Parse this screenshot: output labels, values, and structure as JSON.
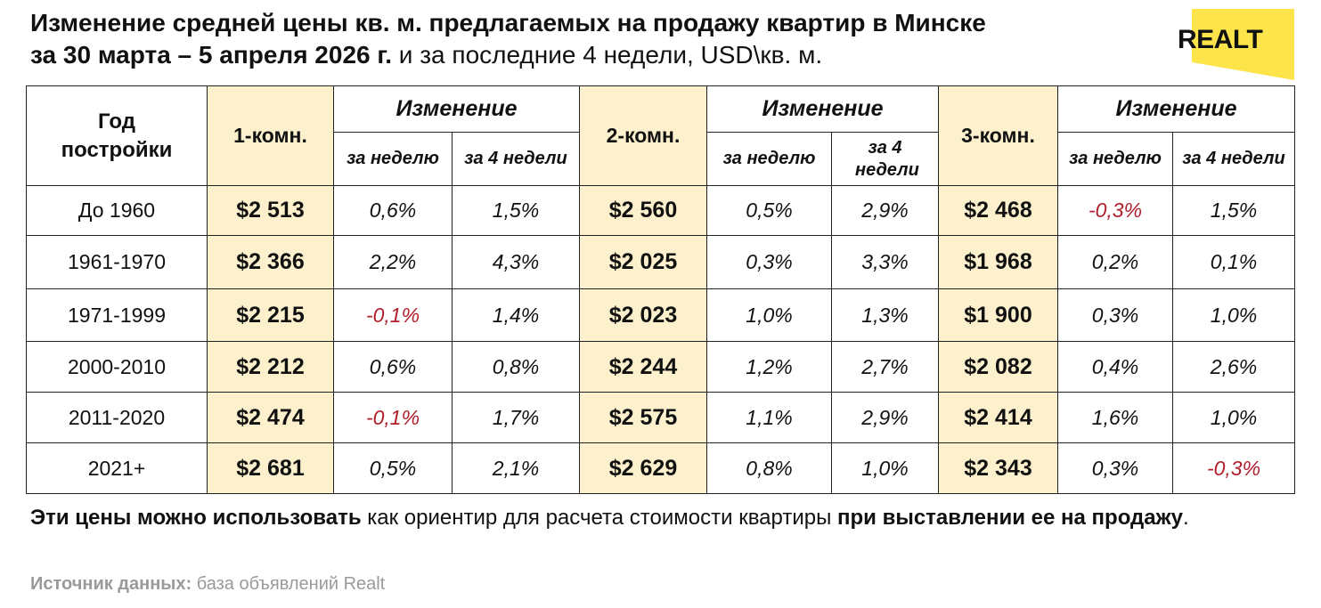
{
  "title": {
    "line1": "Изменение средней цены кв. м. предлагаемых на продажу квартир в Минске",
    "line2_bold": "за 30 марта – 5 апреля 2026 г.",
    "line2_normal": " и за последние 4 недели, USD\\кв. м."
  },
  "logo": {
    "text": "REALT",
    "color": "#fce44a"
  },
  "table": {
    "col_year": "Год постройки",
    "room_headers": [
      "1-комн.",
      "2-комн.",
      "3-комн."
    ],
    "change_header": "Изменение",
    "sub_week": "за неделю",
    "sub_4weeks": "за 4 недели",
    "rows": [
      {
        "year": "До 1960",
        "r1": "$2 513",
        "r1w": "0,6%",
        "r1m": "1,5%",
        "r2": "$2 560",
        "r2w": "0,5%",
        "r2m": "2,9%",
        "r3": "$2 468",
        "r3w": "-0,3%",
        "r3m": "1,5%"
      },
      {
        "year": "1961-1970",
        "r1": "$2 366",
        "r1w": "2,2%",
        "r1m": "4,3%",
        "r2": "$2 025",
        "r2w": "0,3%",
        "r2m": "3,3%",
        "r3": "$1 968",
        "r3w": "0,2%",
        "r3m": "0,1%"
      },
      {
        "year": "1971-1999",
        "r1": "$2 215",
        "r1w": "-0,1%",
        "r1m": "1,4%",
        "r2": "$2 023",
        "r2w": "1,0%",
        "r2m": "1,3%",
        "r3": "$1 900",
        "r3w": "0,3%",
        "r3m": "1,0%"
      },
      {
        "year": "2000-2010",
        "r1": "$2 212",
        "r1w": "0,6%",
        "r1m": "0,8%",
        "r2": "$2 244",
        "r2w": "1,2%",
        "r2m": "2,7%",
        "r3": "$2 082",
        "r3w": "0,4%",
        "r3m": "2,6%"
      },
      {
        "year": "2011-2020",
        "r1": "$2 474",
        "r1w": "-0,1%",
        "r1m": "1,7%",
        "r2": "$2 575",
        "r2w": "1,1%",
        "r2m": "2,9%",
        "r3": "$2 414",
        "r3w": "1,6%",
        "r3m": "1,0%"
      },
      {
        "year": "2021+",
        "r1": "$2 681",
        "r1w": "0,5%",
        "r1m": "2,1%",
        "r2": "$2 629",
        "r2w": "0,8%",
        "r2m": "1,0%",
        "r3": "$2 343",
        "r3w": "0,3%",
        "r3m": "-0,3%"
      }
    ]
  },
  "note": {
    "part1_bold": "Эти цены можно использовать",
    "part2": " как ориентир для расчета стоимости квартиры ",
    "part3_bold": "при выставлении ее на продажу",
    "part4": "."
  },
  "source": {
    "label": "Источник данных:",
    "text": " база объявлений Realt"
  },
  "colors": {
    "highlight": "#fdf0cc",
    "negative": "#b01d2b",
    "logo_yellow": "#fce44a"
  }
}
